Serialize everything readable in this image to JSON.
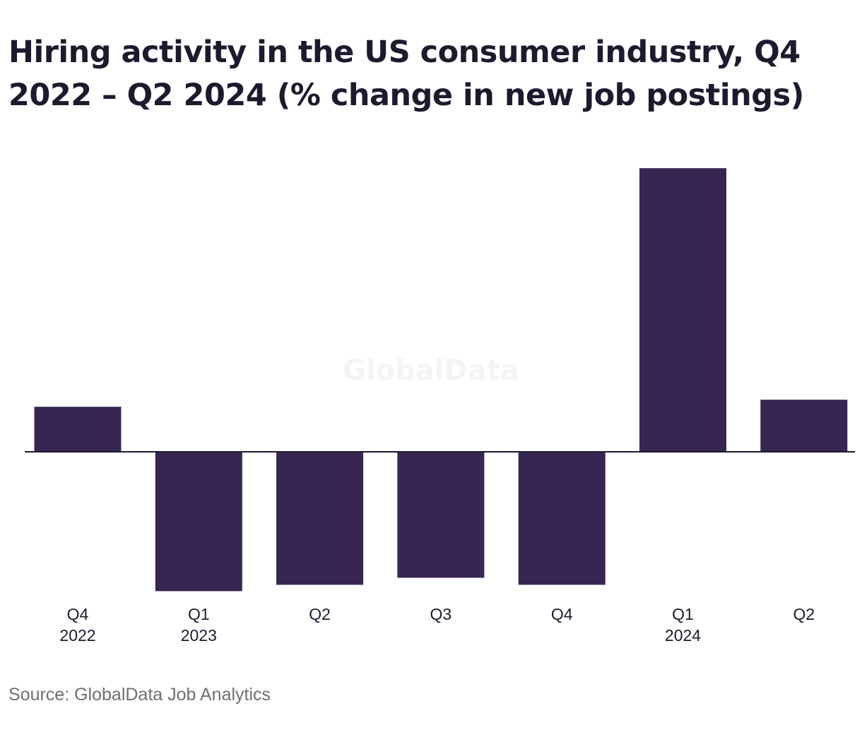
{
  "chart_data": {
    "type": "bar",
    "title": "Hiring activity in the US consumer industry, Q4 2022 – Q2 2024 (% change in new job postings)",
    "categories": [
      {
        "quarter": "Q4",
        "year": "2022"
      },
      {
        "quarter": "Q1",
        "year": "2023"
      },
      {
        "quarter": "Q2",
        "year": ""
      },
      {
        "quarter": "Q3",
        "year": ""
      },
      {
        "quarter": "Q4",
        "year": ""
      },
      {
        "quarter": "Q1",
        "year": "2024"
      },
      {
        "quarter": "Q2",
        "year": ""
      }
    ],
    "values": [
      6.4,
      -19.8,
      -18.9,
      -17.9,
      -18.9,
      40.3,
      7.4
    ],
    "xlabel": "",
    "ylabel": "",
    "ylim": [
      -20,
      45
    ],
    "grid": false,
    "bar_color": "#372552",
    "axis_color": "#1c1b2e"
  },
  "watermark": "GlobalData",
  "source": "Source: GlobalData Job Analytics"
}
